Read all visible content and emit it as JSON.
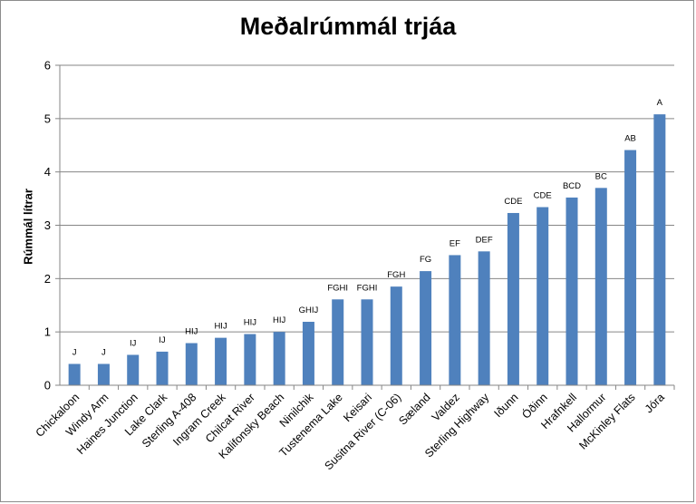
{
  "chart_data": {
    "type": "bar",
    "title": "Meðalrúmmál trjáa",
    "ylabel": "Rúmmál lítrar",
    "xlabel": "",
    "ylim": [
      0,
      6
    ],
    "yticks": [
      0,
      1,
      2,
      3,
      4,
      5,
      6
    ],
    "grid": true,
    "bar_color": "#4f81bd",
    "categories": [
      "Chickaloon",
      "Windy Arm",
      "Haines Junction",
      "Lake Clark",
      "Sterling A-408",
      "Ingram Creek",
      "Chilcat River",
      "Kalifonsky Beach",
      "Ninilchik",
      "Tustenema Lake",
      "Keisari",
      "Susitna River (C-06)",
      "Sæland",
      "Valdez",
      "Sterling Highway",
      "Iðunn",
      "Óðinn",
      "Hrafnkell",
      "Hallormur",
      "McKinley Flats",
      "Jóra"
    ],
    "values": [
      0.4,
      0.4,
      0.57,
      0.63,
      0.79,
      0.89,
      0.96,
      1.0,
      1.19,
      1.61,
      1.61,
      1.85,
      2.14,
      2.44,
      2.51,
      3.23,
      3.34,
      3.52,
      3.7,
      4.41,
      5.08
    ],
    "data_labels": [
      "J",
      "J",
      "IJ",
      "IJ",
      "HIJ",
      "HIJ",
      "HIJ",
      "HIJ",
      "GHIJ",
      "FGHI",
      "FGHI",
      "FGH",
      "FG",
      "EF",
      "DEF",
      "CDE",
      "CDE",
      "BCD",
      "BC",
      "AB",
      "A"
    ]
  }
}
